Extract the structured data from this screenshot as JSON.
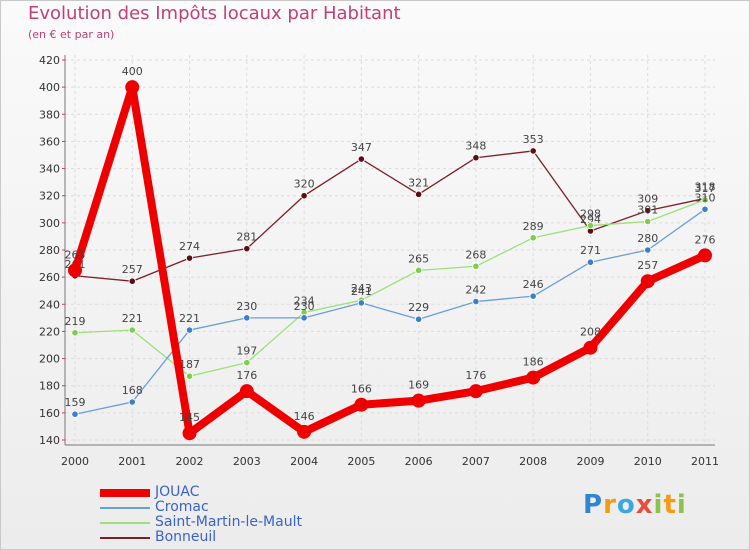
{
  "header": {
    "title": "Evolution des Impôts locaux par Habitant",
    "subtitle": "(en € et par an)"
  },
  "logo": {
    "text": "Proxiti"
  },
  "chart_data": {
    "type": "line",
    "title": "Evolution des Impôts locaux par Habitant",
    "subtitle": "(en € et par an)",
    "xlabel": "",
    "ylabel": "",
    "categories": [
      "2000",
      "2001",
      "2002",
      "2003",
      "2004",
      "2005",
      "2006",
      "2007",
      "2008",
      "2009",
      "2010",
      "2011"
    ],
    "ylim": [
      140,
      420
    ],
    "yticks": [
      140,
      160,
      180,
      200,
      220,
      240,
      260,
      280,
      300,
      320,
      340,
      360,
      380,
      400,
      420
    ],
    "grid": true,
    "legend_position": "bottom-left",
    "series": [
      {
        "name": "Bonneuil",
        "color": "#7a1f28",
        "point_color": "#5a0f18",
        "values": [
          261,
          257,
          274,
          281,
          320,
          347,
          321,
          348,
          353,
          294,
          309,
          318
        ]
      },
      {
        "name": "Saint-Martin-le-Mault",
        "color": "#9be07a",
        "point_color": "#7fcc4f",
        "values": [
          219,
          221,
          187,
          197,
          234,
          243,
          265,
          268,
          289,
          298,
          301,
          317
        ]
      },
      {
        "name": "Cromac",
        "color": "#6a9fd4",
        "point_color": "#3d7fc6",
        "values": [
          159,
          168,
          221,
          230,
          230,
          241,
          229,
          242,
          246,
          271,
          280,
          310
        ]
      },
      {
        "name": "JOUAC",
        "color": "#ee0000",
        "point_color": "#ee0000",
        "values": [
          265,
          400,
          145,
          176,
          146,
          166,
          169,
          176,
          186,
          208,
          257,
          276
        ]
      }
    ],
    "legend": [
      "JOUAC",
      "Cromac",
      "Saint-Martin-le-Mault",
      "Bonneuil"
    ]
  }
}
